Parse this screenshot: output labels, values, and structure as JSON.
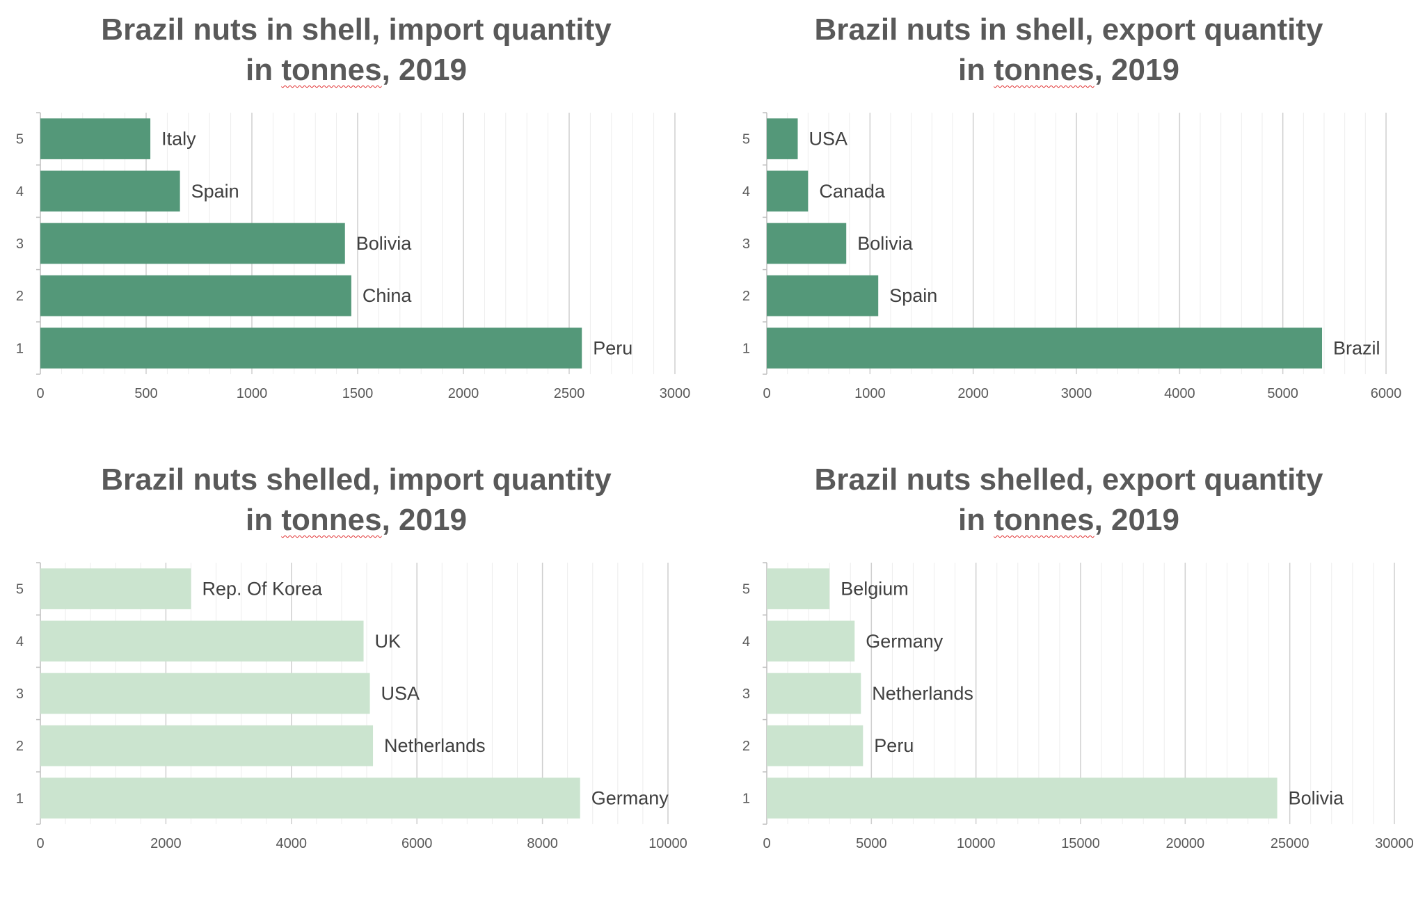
{
  "chart_data": [
    {
      "type": "bar",
      "orientation": "horizontal",
      "title_line1": "Brazil nuts in shell, import quantity",
      "title_prefix": "in ",
      "title_underlined": "tonnes",
      "title_suffix": ", 2019",
      "categories": [
        "1",
        "2",
        "3",
        "4",
        "5"
      ],
      "labels": [
        "Peru",
        "China",
        "Bolivia",
        "Spain",
        "Italy"
      ],
      "values": [
        2560,
        1470,
        1440,
        660,
        520
      ],
      "xlim": [
        0,
        3000
      ],
      "major_ticks": [
        0,
        500,
        1000,
        1500,
        2000,
        2500,
        3000
      ],
      "minor_step": 100,
      "bar_color": "#549879"
    },
    {
      "type": "bar",
      "orientation": "horizontal",
      "title_line1": "Brazil nuts in shell, export quantity",
      "title_prefix": "in ",
      "title_underlined": "tonnes",
      "title_suffix": ", 2019",
      "categories": [
        "1",
        "2",
        "3",
        "4",
        "5"
      ],
      "labels": [
        "Brazil",
        "Spain",
        "Bolivia",
        "Canada",
        "USA"
      ],
      "values": [
        5380,
        1080,
        770,
        400,
        300
      ],
      "xlim": [
        0,
        6000
      ],
      "major_ticks": [
        0,
        1000,
        2000,
        3000,
        4000,
        5000,
        6000
      ],
      "minor_step": 200,
      "bar_color": "#549879"
    },
    {
      "type": "bar",
      "orientation": "horizontal",
      "title_line1": "Brazil nuts shelled, import quantity",
      "title_prefix": "in ",
      "title_underlined": "tonnes",
      "title_suffix": ", 2019",
      "categories": [
        "1",
        "2",
        "3",
        "4",
        "5"
      ],
      "labels": [
        "Germany",
        "Netherlands",
        "USA",
        "UK",
        "Rep. Of Korea"
      ],
      "values": [
        8600,
        5300,
        5250,
        5150,
        2400
      ],
      "xlim": [
        0,
        10000
      ],
      "major_ticks": [
        0,
        2000,
        4000,
        6000,
        8000,
        10000
      ],
      "minor_step": 400,
      "bar_color": "#cbe4cf"
    },
    {
      "type": "bar",
      "orientation": "horizontal",
      "title_line1": "Brazil nuts shelled, export quantity",
      "title_prefix": "in ",
      "title_underlined": "tonnes",
      "title_suffix": ", 2019",
      "categories": [
        "1",
        "2",
        "3",
        "4",
        "5"
      ],
      "labels": [
        "Bolivia",
        "Peru",
        "Netherlands",
        "Germany",
        "Belgium"
      ],
      "values": [
        24400,
        4600,
        4500,
        4200,
        3000
      ],
      "xlim": [
        0,
        30000
      ],
      "major_ticks": [
        0,
        5000,
        10000,
        15000,
        20000,
        25000,
        30000
      ],
      "minor_step": 1000,
      "bar_color": "#cbe4cf"
    }
  ]
}
